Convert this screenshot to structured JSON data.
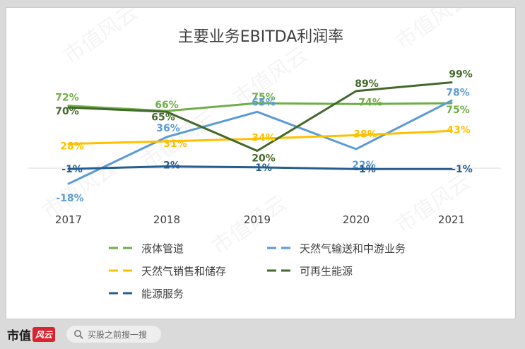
{
  "chart_data": {
    "type": "line",
    "title": "主要业务EBITDA利润率",
    "categories": [
      "2017",
      "2018",
      "2019",
      "2020",
      "2021"
    ],
    "ylim": [
      -25,
      105
    ],
    "grid": false,
    "legend_position": "bottom",
    "series": [
      {
        "name": "液体管道",
        "color": "#70ad47",
        "values": [
          72,
          66,
          75,
          74,
          75
        ],
        "labels": [
          "72%",
          "66%",
          "75%",
          "74%",
          "75%"
        ]
      },
      {
        "name": "天然气输送和中游业务",
        "color": "#5b9bd5",
        "values": [
          -18,
          36,
          65,
          22,
          78
        ],
        "labels": [
          "-18%",
          "36%",
          "65%",
          "22%",
          "78%"
        ]
      },
      {
        "name": "天然气销售和储存",
        "color": "#ffc000",
        "values": [
          28,
          31,
          34,
          38,
          43
        ],
        "labels": [
          "28%",
          "31%",
          "34%",
          "38%",
          "43%"
        ]
      },
      {
        "name": "可再生能源",
        "color": "#43682b",
        "values": [
          70,
          65,
          20,
          89,
          99
        ],
        "labels": [
          "70%",
          "65%",
          "20%",
          "89%",
          "99%"
        ]
      },
      {
        "name": "能源服务",
        "color": "#255e91",
        "values": [
          -1,
          2,
          1,
          -1,
          -1
        ],
        "labels": [
          "-1%",
          "2%",
          "1%",
          "-1%",
          "-1%"
        ]
      }
    ]
  },
  "watermark": "市值风云",
  "footer": {
    "brand": "市值",
    "brand_seal": "风云",
    "search_placeholder": "买股之前搜一搜"
  }
}
